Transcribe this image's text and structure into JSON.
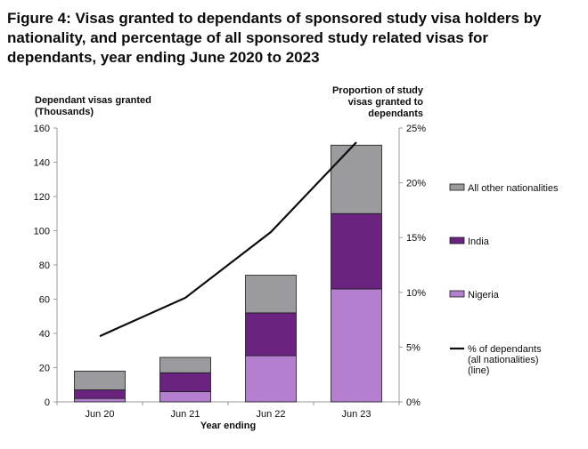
{
  "title": "Figure 4: Visas granted to dependants of sponsored study visa holders by nationality, and percentage of all sponsored study related visas for dependants, year ending June 2020 to 2023",
  "colors": {
    "all_other": "#9b9b9e",
    "india": "#6a2480",
    "nigeria": "#b47fcf",
    "line": "#0b0c0c"
  },
  "chart_data": {
    "type": "bar",
    "stacked": true,
    "categories": [
      "Jun 20",
      "Jun 21",
      "Jun 22",
      "Jun 23"
    ],
    "xlabel": "Year ending",
    "ylabel": "Dependant visas granted (Thousands)",
    "ylabel_right": "Proportion of study visas granted to dependants",
    "ylim": [
      0,
      160
    ],
    "yticks": [
      0,
      20,
      40,
      60,
      80,
      100,
      120,
      140,
      160
    ],
    "ylim_right": [
      0,
      25
    ],
    "yticks_right": [
      "0%",
      "5%",
      "10%",
      "15%",
      "20%",
      "25%"
    ],
    "series": [
      {
        "name": "Nigeria",
        "values": [
          2,
          6,
          27,
          66
        ]
      },
      {
        "name": "India",
        "values": [
          5,
          11,
          25,
          44
        ]
      },
      {
        "name": "All other nationalities",
        "values": [
          11,
          9,
          22,
          40
        ]
      }
    ],
    "line_series": {
      "name": "% of dependants (all nationalities) (line)",
      "values": [
        6,
        9.5,
        15.5,
        23.7
      ]
    },
    "legend": [
      {
        "label": "All other nationalities",
        "kind": "box",
        "color": "#9b9b9e"
      },
      {
        "label": "India",
        "kind": "box",
        "color": "#6a2480"
      },
      {
        "label": "Nigeria",
        "kind": "box",
        "color": "#b47fcf"
      },
      {
        "label": "% of dependants (all nationalities) (line)",
        "kind": "line",
        "color": "#0b0c0c"
      }
    ],
    "legend_position": "right",
    "grid": false
  }
}
